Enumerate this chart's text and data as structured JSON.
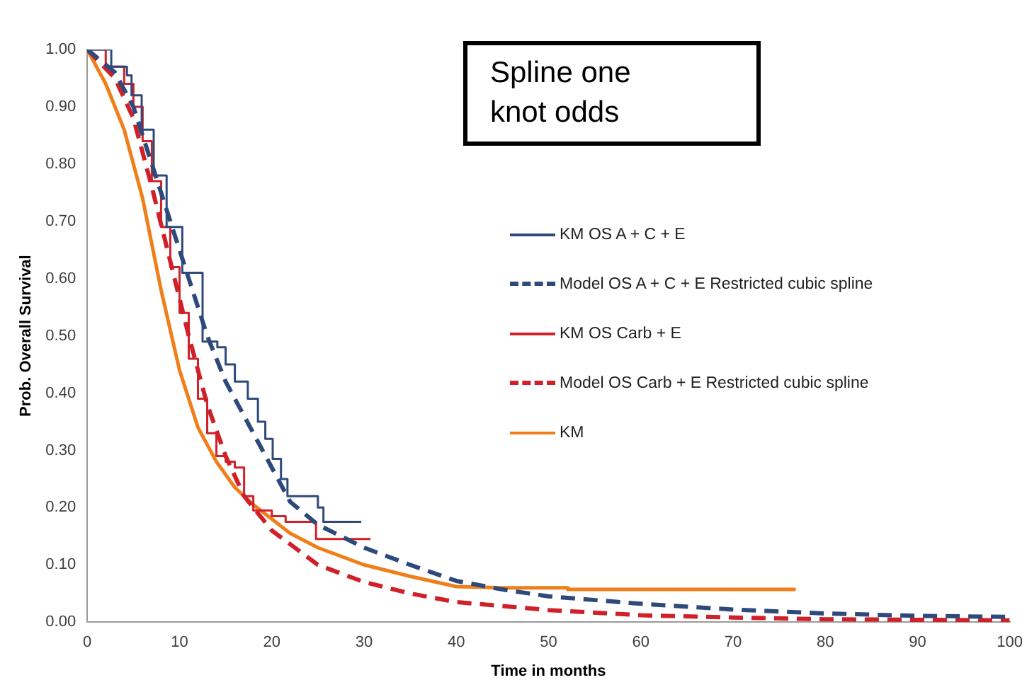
{
  "chart_data": {
    "type": "line",
    "xlabel": "Time in months",
    "ylabel": "Prob. Overall Survival",
    "annotations": [
      "Spline one\nknot odds"
    ],
    "xlim": [
      0,
      100
    ],
    "xticks": [
      0,
      10,
      20,
      30,
      40,
      50,
      60,
      70,
      80,
      90,
      100
    ],
    "ylim": [
      0,
      1
    ],
    "yticks": [
      {
        "value": 0,
        "label": "0.00"
      },
      {
        "value": 0.1,
        "label": "0.10"
      },
      {
        "value": 0.2,
        "label": "0.20"
      },
      {
        "value": 0.3,
        "label": "0.30"
      },
      {
        "value": 0.4,
        "label": "0.40"
      },
      {
        "value": 0.5,
        "label": "0.50"
      },
      {
        "value": 0.6,
        "label": "0.60"
      },
      {
        "value": 0.7,
        "label": "0.70"
      },
      {
        "value": 0.8,
        "label": "0.80"
      },
      {
        "value": 0.9,
        "label": "0.90"
      },
      {
        "value": 1,
        "label": "1.00"
      }
    ],
    "grid": false,
    "legend": "top right",
    "marker": "none",
    "series": [
      {
        "name": "KM OS A + C + E",
        "type": "step",
        "color": "#2e4a7a",
        "line_style": "solid",
        "x": [
          0,
          2.6,
          4.3,
          4.8,
          5.9,
          7.2,
          8.6,
          10.3,
          12.5,
          14.1,
          15,
          16,
          17.4,
          18.5,
          19.3,
          20.1,
          21,
          21.7,
          25,
          25.6,
          29.7
        ],
        "values": [
          1,
          0.97,
          0.955,
          0.92,
          0.86,
          0.78,
          0.69,
          0.61,
          0.49,
          0.48,
          0.45,
          0.42,
          0.39,
          0.35,
          0.32,
          0.285,
          0.25,
          0.22,
          0.2,
          0.175,
          0.175
        ]
      },
      {
        "name": "Model OS A + C + E Restricted cubic spline",
        "type": "line",
        "color": "#2e4a7a",
        "line_style": "dashed",
        "x": [
          0,
          3,
          5,
          7,
          9,
          11,
          13,
          15,
          18,
          20,
          22,
          25,
          30,
          35,
          40,
          45,
          50,
          60,
          70,
          80,
          90,
          100
        ],
        "values": [
          1,
          0.96,
          0.9,
          0.8,
          0.7,
          0.6,
          0.5,
          0.42,
          0.33,
          0.27,
          0.21,
          0.17,
          0.13,
          0.1,
          0.072,
          0.057,
          0.045,
          0.032,
          0.022,
          0.015,
          0.011,
          0.009
        ]
      },
      {
        "name": "KM OS Carb + E",
        "type": "step",
        "color": "#d0202a",
        "line_style": "solid",
        "x": [
          0,
          2,
          4,
          5,
          6,
          7,
          8,
          9,
          10,
          11,
          12,
          13,
          14,
          15,
          16,
          17,
          18,
          20,
          21.5,
          24.8,
          30.7
        ],
        "values": [
          1,
          0.97,
          0.94,
          0.9,
          0.84,
          0.77,
          0.69,
          0.62,
          0.54,
          0.46,
          0.39,
          0.33,
          0.29,
          0.28,
          0.27,
          0.22,
          0.195,
          0.185,
          0.175,
          0.145,
          0.145
        ]
      },
      {
        "name": "Model OS Carb + E  Restricted cubic spline",
        "type": "line",
        "color": "#d0202a",
        "line_style": "dashed",
        "x": [
          0,
          3,
          5,
          7,
          9,
          11,
          13,
          15,
          17,
          20,
          25,
          30,
          35,
          40,
          50,
          60,
          70,
          80,
          90,
          100
        ],
        "values": [
          1,
          0.95,
          0.88,
          0.76,
          0.63,
          0.5,
          0.38,
          0.29,
          0.22,
          0.16,
          0.1,
          0.07,
          0.05,
          0.035,
          0.021,
          0.012,
          0.008,
          0.005,
          0.004,
          0.003
        ]
      },
      {
        "name": "KM",
        "type": "line",
        "color": "#f07f1a",
        "line_style": "solid",
        "x": [
          0,
          2,
          4,
          6,
          8,
          10,
          12,
          14,
          16,
          18,
          20,
          22,
          25,
          30,
          35,
          40,
          45,
          52,
          52.1,
          76.8
        ],
        "values": [
          1,
          0.94,
          0.86,
          0.74,
          0.58,
          0.44,
          0.34,
          0.28,
          0.235,
          0.205,
          0.18,
          0.155,
          0.13,
          0.1,
          0.08,
          0.062,
          0.06,
          0.06,
          0.057,
          0.057
        ]
      }
    ]
  }
}
